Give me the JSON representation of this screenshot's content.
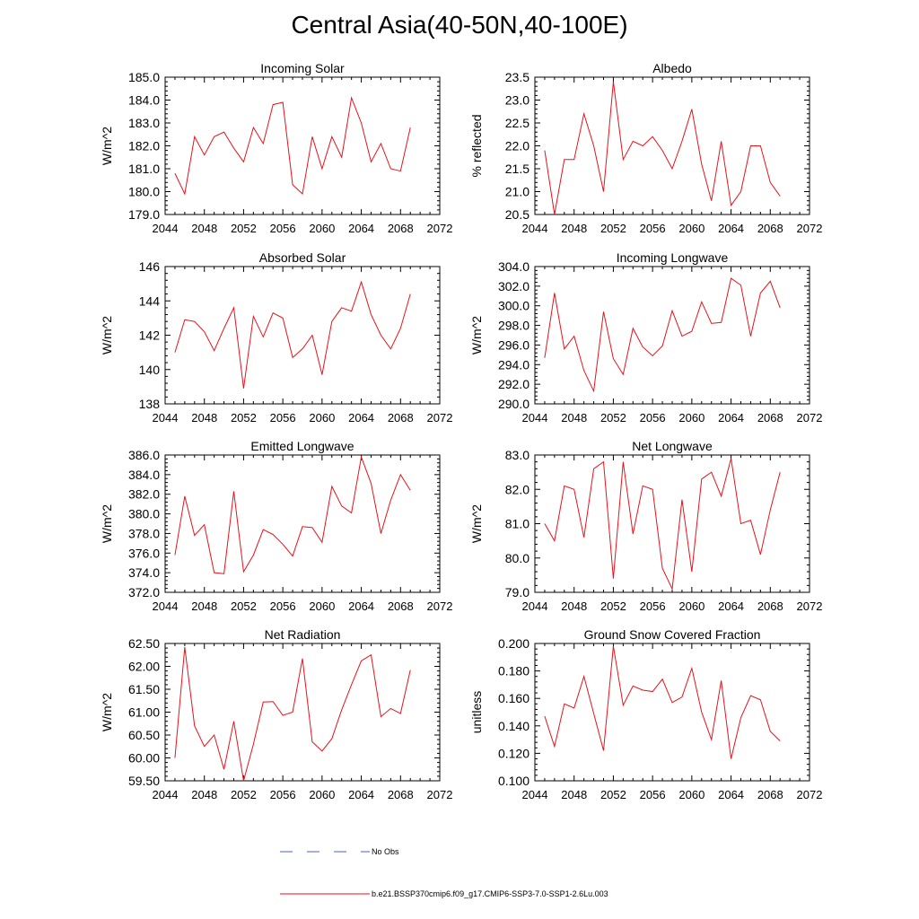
{
  "title": "Central Asia(40-50N,40-100E)",
  "colors": {
    "series": "#e8121b",
    "no_obs": "#4a62c0",
    "axis": "#000000"
  },
  "legend": {
    "no_obs_label": "No Obs",
    "series_label": "b.e21.BSSP370cmip6.f09_g17.CMIP6-SSP3-7.0-SSP1-2.6Lu.003"
  },
  "chart_data": [
    {
      "type": "line",
      "title": "Incoming Solar",
      "ylabel": "W/m^2",
      "xlim": [
        2044,
        2072
      ],
      "xticks": [
        2044,
        2048,
        2052,
        2056,
        2060,
        2064,
        2068,
        2072
      ],
      "ylim": [
        179.0,
        185.0
      ],
      "yticks": [
        179.0,
        180.0,
        181.0,
        182.0,
        183.0,
        184.0,
        185.0
      ],
      "ydecimals": 1,
      "x": [
        2045,
        2046,
        2047,
        2048,
        2049,
        2050,
        2051,
        2052,
        2053,
        2054,
        2055,
        2056,
        2057,
        2058,
        2059,
        2060,
        2061,
        2062,
        2063,
        2064,
        2065,
        2066,
        2067,
        2068,
        2069
      ],
      "y": [
        180.8,
        179.9,
        182.4,
        181.6,
        182.4,
        182.6,
        181.9,
        181.3,
        182.8,
        182.1,
        183.8,
        183.9,
        180.3,
        179.9,
        182.4,
        181.0,
        182.4,
        181.5,
        184.1,
        183.0,
        181.3,
        182.1,
        181.0,
        180.9,
        182.8
      ]
    },
    {
      "type": "line",
      "title": "Albedo",
      "ylabel": "% reflected",
      "xlim": [
        2044,
        2072
      ],
      "xticks": [
        2044,
        2048,
        2052,
        2056,
        2060,
        2064,
        2068,
        2072
      ],
      "ylim": [
        20.5,
        23.5
      ],
      "yticks": [
        20.5,
        21.0,
        21.5,
        22.0,
        22.5,
        23.0,
        23.5
      ],
      "ydecimals": 1,
      "x": [
        2045,
        2046,
        2047,
        2048,
        2049,
        2050,
        2051,
        2052,
        2053,
        2054,
        2055,
        2056,
        2057,
        2058,
        2059,
        2060,
        2061,
        2062,
        2063,
        2064,
        2065,
        2066,
        2067,
        2068,
        2069
      ],
      "y": [
        21.9,
        20.5,
        21.7,
        21.7,
        22.7,
        22.0,
        21.0,
        23.4,
        21.7,
        22.1,
        22.0,
        22.2,
        21.9,
        21.5,
        22.1,
        22.8,
        21.6,
        20.8,
        22.1,
        20.7,
        21.0,
        22.0,
        22.0,
        21.2,
        20.9
      ]
    },
    {
      "type": "line",
      "title": "Absorbed Solar",
      "ylabel": "W/m^2",
      "xlim": [
        2044,
        2072
      ],
      "xticks": [
        2044,
        2048,
        2052,
        2056,
        2060,
        2064,
        2068,
        2072
      ],
      "ylim": [
        138,
        146
      ],
      "yticks": [
        138,
        140,
        142,
        144,
        146
      ],
      "ydecimals": 0,
      "x": [
        2045,
        2046,
        2047,
        2048,
        2049,
        2050,
        2051,
        2052,
        2053,
        2054,
        2055,
        2056,
        2057,
        2058,
        2059,
        2060,
        2061,
        2062,
        2063,
        2064,
        2065,
        2066,
        2067,
        2068,
        2069
      ],
      "y": [
        141.0,
        142.9,
        142.8,
        142.2,
        141.1,
        142.4,
        143.6,
        138.9,
        143.1,
        141.9,
        143.3,
        143.0,
        140.7,
        141.2,
        142.0,
        139.7,
        142.8,
        143.6,
        143.4,
        145.1,
        143.2,
        142.0,
        141.2,
        142.4,
        144.4
      ]
    },
    {
      "type": "line",
      "title": "Incoming Longwave",
      "ylabel": "W/m^2",
      "xlim": [
        2044,
        2072
      ],
      "xticks": [
        2044,
        2048,
        2052,
        2056,
        2060,
        2064,
        2068,
        2072
      ],
      "ylim": [
        290.0,
        304.0
      ],
      "yticks": [
        290.0,
        292.0,
        294.0,
        296.0,
        298.0,
        300.0,
        302.0,
        304.0
      ],
      "ydecimals": 1,
      "x": [
        2045,
        2046,
        2047,
        2048,
        2049,
        2050,
        2051,
        2052,
        2053,
        2054,
        2055,
        2056,
        2057,
        2058,
        2059,
        2060,
        2061,
        2062,
        2063,
        2064,
        2065,
        2066,
        2067,
        2068,
        2069
      ],
      "y": [
        294.7,
        301.3,
        295.6,
        296.9,
        293.4,
        291.3,
        299.4,
        294.6,
        293.0,
        297.7,
        295.8,
        294.9,
        295.9,
        299.5,
        296.9,
        297.4,
        300.4,
        298.2,
        298.3,
        302.8,
        302.1,
        296.9,
        301.3,
        302.5,
        299.8
      ]
    },
    {
      "type": "line",
      "title": "Emitted Longwave",
      "ylabel": "W/m^2",
      "xlim": [
        2044,
        2072
      ],
      "xticks": [
        2044,
        2048,
        2052,
        2056,
        2060,
        2064,
        2068,
        2072
      ],
      "ylim": [
        372.0,
        386.0
      ],
      "yticks": [
        372.0,
        374.0,
        376.0,
        378.0,
        380.0,
        382.0,
        384.0,
        386.0
      ],
      "ydecimals": 1,
      "x": [
        2045,
        2046,
        2047,
        2048,
        2049,
        2050,
        2051,
        2052,
        2053,
        2054,
        2055,
        2056,
        2057,
        2058,
        2059,
        2060,
        2061,
        2062,
        2063,
        2064,
        2065,
        2066,
        2067,
        2068,
        2069
      ],
      "y": [
        375.8,
        381.8,
        377.8,
        378.9,
        374.0,
        373.9,
        382.3,
        374.1,
        375.8,
        378.4,
        377.9,
        376.9,
        375.7,
        378.7,
        378.6,
        377.1,
        382.8,
        380.8,
        380.1,
        385.8,
        383.1,
        378.0,
        381.4,
        384.0,
        382.4
      ]
    },
    {
      "type": "line",
      "title": "Net Longwave",
      "ylabel": "W/m^2",
      "xlim": [
        2044,
        2072
      ],
      "xticks": [
        2044,
        2048,
        2052,
        2056,
        2060,
        2064,
        2068,
        2072
      ],
      "ylim": [
        79.0,
        83.0
      ],
      "yticks": [
        79.0,
        80.0,
        81.0,
        82.0,
        83.0
      ],
      "ydecimals": 1,
      "x": [
        2045,
        2046,
        2047,
        2048,
        2049,
        2050,
        2051,
        2052,
        2053,
        2054,
        2055,
        2056,
        2057,
        2058,
        2059,
        2060,
        2061,
        2062,
        2063,
        2064,
        2065,
        2066,
        2067,
        2068,
        2069
      ],
      "y": [
        81.0,
        80.5,
        82.1,
        82.0,
        80.6,
        82.6,
        82.8,
        79.4,
        82.8,
        80.7,
        82.1,
        82.0,
        79.7,
        79.1,
        81.7,
        79.6,
        82.3,
        82.5,
        81.8,
        82.9,
        81.0,
        81.1,
        80.1,
        81.4,
        82.5
      ]
    },
    {
      "type": "line",
      "title": "Net Radiation",
      "ylabel": "W/m^2",
      "xlim": [
        2044,
        2072
      ],
      "xticks": [
        2044,
        2048,
        2052,
        2056,
        2060,
        2064,
        2068,
        2072
      ],
      "ylim": [
        59.5,
        62.5
      ],
      "yticks": [
        59.5,
        60.0,
        60.5,
        61.0,
        61.5,
        62.0,
        62.5
      ],
      "ydecimals": 2,
      "x": [
        2045,
        2046,
        2047,
        2048,
        2049,
        2050,
        2051,
        2052,
        2053,
        2054,
        2055,
        2056,
        2057,
        2058,
        2059,
        2060,
        2061,
        2062,
        2063,
        2064,
        2065,
        2066,
        2067,
        2068,
        2069
      ],
      "y": [
        60.0,
        62.42,
        60.7,
        60.25,
        60.5,
        59.75,
        60.8,
        59.5,
        60.3,
        61.22,
        61.23,
        60.93,
        61.0,
        62.17,
        60.35,
        60.15,
        60.42,
        61.05,
        61.6,
        62.12,
        62.25,
        60.9,
        61.08,
        60.97,
        61.92
      ]
    },
    {
      "type": "line",
      "title": "Ground Snow Covered Fraction",
      "ylabel": "unitless",
      "xlim": [
        2044,
        2072
      ],
      "xticks": [
        2044,
        2048,
        2052,
        2056,
        2060,
        2064,
        2068,
        2072
      ],
      "ylim": [
        0.1,
        0.2
      ],
      "yticks": [
        0.1,
        0.12,
        0.14,
        0.16,
        0.18,
        0.2
      ],
      "ydecimals": 3,
      "x": [
        2045,
        2046,
        2047,
        2048,
        2049,
        2050,
        2051,
        2052,
        2053,
        2054,
        2055,
        2056,
        2057,
        2058,
        2059,
        2060,
        2061,
        2062,
        2063,
        2064,
        2065,
        2066,
        2067,
        2068,
        2069
      ],
      "y": [
        0.147,
        0.125,
        0.156,
        0.153,
        0.176,
        0.149,
        0.122,
        0.198,
        0.155,
        0.169,
        0.166,
        0.165,
        0.174,
        0.157,
        0.161,
        0.182,
        0.15,
        0.13,
        0.173,
        0.116,
        0.146,
        0.162,
        0.159,
        0.136,
        0.129
      ]
    }
  ]
}
